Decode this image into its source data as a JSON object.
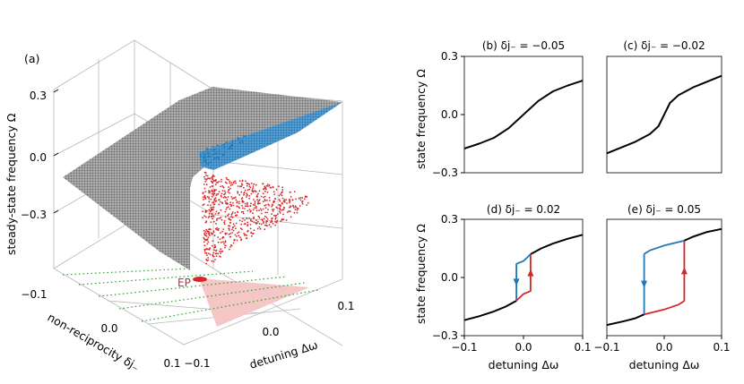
{
  "colors": {
    "grey_sheet": "#8a8a8a",
    "blue_branch": "#1f77b4",
    "red_branch": "#d62728",
    "pink_region": "#f4c6c6",
    "green_lines": "#2ca02c",
    "black_curve": "#000000"
  },
  "chart_data": [
    {
      "panel": "(a)",
      "type": "scatter3d",
      "panel_label": "(a)",
      "zlabel": "steady-state frequency Ω",
      "xlabel": "detuning Δω",
      "ylabel": "non-reciprocity δj₋",
      "z_ticks": [
        "0.3",
        "0.0",
        "−0.3"
      ],
      "x_ticks": [
        "−0.1",
        "0.0",
        "0.1"
      ],
      "y_ticks": [
        "−0.1",
        "0.0",
        "0.1"
      ],
      "xlim": [
        -0.1,
        0.1
      ],
      "ylim": [
        -0.1,
        0.1
      ],
      "zlim": [
        -0.45,
        0.3
      ],
      "annotation": "EP",
      "series": [
        {
          "name": "single steady state (grey sheet)",
          "color": "grey"
        },
        {
          "name": "upper branch (blue)",
          "color": "blue"
        },
        {
          "name": "lower branch (red)",
          "color": "red"
        }
      ]
    },
    {
      "panel": "(b)",
      "type": "line",
      "title": "(b) δj₋ = −0.05",
      "ylabel": "state frequency Ω",
      "xlim": [
        -0.1,
        0.1
      ],
      "ylim": [
        -0.3,
        0.3
      ],
      "yticks": [
        "0.3",
        "0.0",
        "−0.3"
      ],
      "x": [
        -0.1,
        -0.075,
        -0.05,
        -0.025,
        0.0,
        0.025,
        0.05,
        0.075,
        0.1
      ],
      "series": [
        {
          "name": "Ω",
          "color": "black",
          "values": [
            -0.175,
            -0.15,
            -0.12,
            -0.07,
            0.0,
            0.07,
            0.12,
            0.15,
            0.175
          ]
        }
      ]
    },
    {
      "panel": "(c)",
      "type": "line",
      "title": "(c) δj₋ = −0.02",
      "xlim": [
        -0.1,
        0.1
      ],
      "ylim": [
        -0.3,
        0.3
      ],
      "x": [
        -0.1,
        -0.075,
        -0.05,
        -0.025,
        -0.01,
        0.0,
        0.01,
        0.025,
        0.05,
        0.075,
        0.1
      ],
      "series": [
        {
          "name": "Ω",
          "color": "black",
          "values": [
            -0.2,
            -0.17,
            -0.14,
            -0.1,
            -0.06,
            0.0,
            0.06,
            0.1,
            0.14,
            0.17,
            0.2
          ]
        }
      ]
    },
    {
      "panel": "(d)",
      "type": "line",
      "title": "(d) δj₋ = 0.02",
      "ylabel": "state frequency Ω",
      "xlabel": "detuning Δω",
      "xlim": [
        -0.1,
        0.1
      ],
      "ylim": [
        -0.3,
        0.3
      ],
      "yticks": [
        "0.3",
        "0.0",
        "−0.3"
      ],
      "xticks": [
        "−0.1",
        "0.0",
        "0.1"
      ],
      "series": [
        {
          "name": "lower stable branch",
          "color": "black",
          "x": [
            -0.1,
            -0.075,
            -0.05,
            -0.03,
            -0.012
          ],
          "values": [
            -0.22,
            -0.2,
            -0.175,
            -0.15,
            -0.12
          ]
        },
        {
          "name": "upper stable branch",
          "color": "black",
          "x": [
            0.012,
            0.03,
            0.05,
            0.075,
            0.1
          ],
          "values": [
            0.12,
            0.15,
            0.175,
            0.2,
            0.22
          ]
        },
        {
          "name": "down sweep (blue)",
          "color": "blue",
          "x": [
            0.012,
            0.0,
            -0.012,
            -0.012
          ],
          "values": [
            0.12,
            0.085,
            0.07,
            -0.12
          ]
        },
        {
          "name": "up sweep (red)",
          "color": "red",
          "x": [
            -0.012,
            0.0,
            0.012,
            0.012
          ],
          "values": [
            -0.12,
            -0.085,
            -0.07,
            0.12
          ]
        }
      ]
    },
    {
      "panel": "(e)",
      "type": "line",
      "title": "(e) δj₋ = 0.05",
      "xlabel": "detuning Δω",
      "xlim": [
        -0.1,
        0.1
      ],
      "ylim": [
        -0.3,
        0.3
      ],
      "xticks": [
        "−0.1",
        "0.0",
        "0.1"
      ],
      "series": [
        {
          "name": "lower stable branch",
          "color": "black",
          "x": [
            -0.1,
            -0.07,
            -0.05,
            -0.035
          ],
          "values": [
            -0.245,
            -0.225,
            -0.21,
            -0.19
          ]
        },
        {
          "name": "upper stable branch",
          "color": "black",
          "x": [
            0.035,
            0.05,
            0.075,
            0.1
          ],
          "values": [
            0.19,
            0.21,
            0.235,
            0.25
          ]
        },
        {
          "name": "down sweep (blue)",
          "color": "blue",
          "x": [
            0.035,
            0.0,
            -0.025,
            -0.033,
            -0.035,
            -0.035
          ],
          "values": [
            0.19,
            0.165,
            0.14,
            0.125,
            0.12,
            -0.19
          ]
        },
        {
          "name": "up sweep (red)",
          "color": "red",
          "x": [
            -0.035,
            0.0,
            0.025,
            0.033,
            0.035,
            0.035
          ],
          "values": [
            -0.19,
            -0.165,
            -0.14,
            -0.125,
            -0.12,
            0.19
          ]
        }
      ]
    }
  ]
}
